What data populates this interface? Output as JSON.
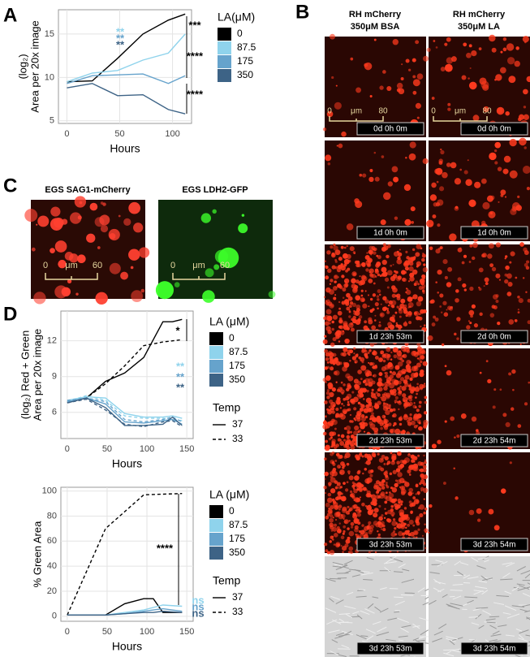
{
  "panel_labels": [
    "A",
    "B",
    "C",
    "D"
  ],
  "chart_data": [
    {
      "type": "line",
      "y_label": [
        "(log₂)",
        "Area per 20x image"
      ],
      "x_label": "Hours",
      "x": [
        0,
        24,
        48,
        72,
        96,
        112
      ],
      "xlim": [
        -8,
        118
      ],
      "xticks": [
        0,
        50,
        100
      ],
      "ylim": [
        4.7,
        17.8
      ],
      "yticks": [
        5,
        10,
        15
      ],
      "grid": true,
      "legend": {
        "title": "LA(μM)"
      },
      "series": [
        {
          "name": "0",
          "color": "#000000",
          "values": [
            9.5,
            9.6,
            12.2,
            15.0,
            16.6,
            17.3
          ]
        },
        {
          "name": "87.5",
          "color": "#8fd3ec",
          "values": [
            9.5,
            10.5,
            10.8,
            12.0,
            12.8,
            15.0
          ]
        },
        {
          "name": "175",
          "color": "#66a3cc",
          "values": [
            9.3,
            10.2,
            10.3,
            10.4,
            9.3,
            10.2
          ]
        },
        {
          "name": "350",
          "color": "#3d6386",
          "values": [
            8.8,
            9.3,
            7.9,
            8.0,
            6.3,
            5.8
          ]
        }
      ],
      "annotations": [
        {
          "text": "***",
          "color": "#000000"
        },
        {
          "text": "****",
          "color": "#000000"
        },
        {
          "text": "****",
          "color": "#000000"
        },
        {
          "text": "**",
          "color": "#8fd3ec"
        },
        {
          "text": "**",
          "color": "#66a3cc"
        },
        {
          "text": "**",
          "color": "#3d6386"
        }
      ]
    },
    {
      "type": "line",
      "y_label": [
        "(log₂) Red + Green",
        "Area per 20x image"
      ],
      "x_label": "Hours",
      "x": [
        0,
        24,
        48,
        72,
        96,
        120,
        132,
        144
      ],
      "xlim": [
        -8,
        158
      ],
      "xticks": [
        0,
        50,
        100,
        150
      ],
      "ylim": [
        3.8,
        14.5
      ],
      "yticks": [
        6,
        9,
        12
      ],
      "grid": true,
      "legend": {
        "title": "LA (μM)"
      },
      "temp_legend": {
        "title": "Temp",
        "entries": [
          "37",
          "33"
        ]
      },
      "series": [
        {
          "name": "0",
          "temp": "37",
          "color": "#000000",
          "values": [
            6.8,
            7.2,
            8.6,
            9.3,
            10.6,
            13.6,
            13.6,
            13.8
          ]
        },
        {
          "name": "0",
          "temp": "33",
          "color": "#000000",
          "values": [
            6.9,
            7.2,
            8.4,
            9.9,
            11.6,
            11.9,
            12.0,
            12.1
          ]
        },
        {
          "name": "87.5",
          "temp": "37",
          "color": "#8fd3ec",
          "values": [
            7.0,
            7.3,
            7.2,
            5.9,
            5.6,
            5.6,
            5.7,
            5.5
          ]
        },
        {
          "name": "87.5",
          "temp": "33",
          "color": "#8fd3ec",
          "values": [
            6.9,
            7.4,
            7.0,
            5.7,
            5.5,
            5.5,
            5.4,
            5.3
          ]
        },
        {
          "name": "175",
          "temp": "37",
          "color": "#66a3cc",
          "values": [
            6.9,
            7.2,
            6.7,
            5.2,
            5.1,
            5.3,
            5.4,
            5.0
          ]
        },
        {
          "name": "175",
          "temp": "33",
          "color": "#66a3cc",
          "values": [
            7.0,
            7.2,
            6.9,
            5.4,
            5.2,
            5.4,
            5.6,
            5.2
          ]
        },
        {
          "name": "350",
          "temp": "37",
          "color": "#3d6386",
          "values": [
            6.8,
            7.2,
            6.4,
            4.9,
            4.9,
            5.0,
            5.6,
            4.9
          ]
        },
        {
          "name": "350",
          "temp": "33",
          "color": "#3d6386",
          "values": [
            6.8,
            7.1,
            6.2,
            5.0,
            4.8,
            5.2,
            5.3,
            4.8
          ]
        }
      ],
      "annotations": [
        {
          "text": "*",
          "color": "#000000"
        },
        {
          "text": "**",
          "color": "#8fd3ec"
        },
        {
          "text": "**",
          "color": "#66a3cc"
        },
        {
          "text": "**",
          "color": "#3d6386"
        }
      ]
    },
    {
      "type": "line",
      "y_label": [
        "% Green Area"
      ],
      "x_label": "Hours",
      "xlim": [
        -8,
        158
      ],
      "xticks": [
        0,
        50,
        100,
        150
      ],
      "ylim": [
        -4,
        103
      ],
      "yticks": [
        0,
        20,
        40,
        60,
        80,
        100
      ],
      "grid": true,
      "legend": {
        "title": "LA (μM)"
      },
      "temp_legend": {
        "title": "Temp",
        "entries": [
          "37",
          "33"
        ]
      },
      "series": [
        {
          "name": "0",
          "temp": "33",
          "color": "#000000",
          "x": [
            0,
            48,
            96,
            144
          ],
          "values": [
            1,
            70,
            97,
            98
          ]
        },
        {
          "name": "0",
          "temp": "37",
          "color": "#000000",
          "x": [
            0,
            24,
            48,
            72,
            96,
            108,
            120,
            144
          ],
          "values": [
            1,
            1,
            1,
            10,
            14,
            14,
            3,
            3
          ]
        },
        {
          "name": "87.5",
          "temp": "37",
          "color": "#8fd3ec",
          "x": [
            0,
            24,
            48,
            72,
            96,
            108,
            120,
            144
          ],
          "values": [
            1,
            1,
            1,
            3,
            5,
            7,
            9,
            8
          ]
        },
        {
          "name": "175",
          "temp": "37",
          "color": "#66a3cc",
          "x": [
            0,
            24,
            48,
            72,
            96,
            108,
            120,
            144
          ],
          "values": [
            1,
            1,
            1,
            2,
            4,
            5,
            6,
            4
          ]
        },
        {
          "name": "350",
          "temp": "37",
          "color": "#3d6386",
          "x": [
            0,
            24,
            48,
            72,
            96,
            108,
            120,
            144
          ],
          "values": [
            1,
            1,
            1,
            2,
            3,
            3,
            4,
            3
          ]
        }
      ],
      "annotations": [
        {
          "text": "****",
          "color": "#000000"
        },
        {
          "text": "ns",
          "color": "#8fd3ec"
        },
        {
          "text": "ns",
          "color": "#66a3cc"
        },
        {
          "text": "ns",
          "color": "#3d6386"
        }
      ]
    }
  ],
  "panel_b": {
    "columns": [
      [
        "RH mCherry",
        "350μM BSA"
      ],
      [
        "RH mCherry",
        "350μM LA"
      ]
    ],
    "scale": {
      "start": "0",
      "unit": "μm",
      "end": "80"
    },
    "timestamps": [
      [
        "0d 0h 0m",
        "0d 0h 0m"
      ],
      [
        "1d 0h 0m",
        "1d 0h 0m"
      ],
      [
        "1d 23h 53m",
        "2d 0h 0m"
      ],
      [
        "2d 23h 53m",
        "2d 23h 54m"
      ],
      [
        "3d 23h 53m",
        "3d 23h 54m"
      ],
      [
        "3d 23h 53m",
        "3d 23h 54m"
      ]
    ]
  },
  "panel_c": {
    "images": [
      "EGS SAG1-mCherry",
      "EGS LDH2-GFP"
    ],
    "scale": {
      "start": "0",
      "unit": "μm",
      "end": "60"
    }
  }
}
